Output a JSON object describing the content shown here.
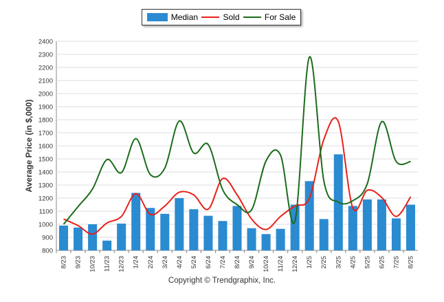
{
  "legend": {
    "median": "Median",
    "sold": "Sold",
    "for_sale": "For Sale"
  },
  "copyright": "Copyright © Trendgraphix, Inc.",
  "chart_data": {
    "type": "bar",
    "title": "",
    "xlabel": "",
    "ylabel": "Average Price (in $,000)",
    "ylim": [
      800,
      2400
    ],
    "yticks": [
      800,
      900,
      1000,
      1100,
      1200,
      1300,
      1400,
      1500,
      1600,
      1700,
      1800,
      1900,
      2000,
      2100,
      2200,
      2300,
      2400
    ],
    "grid": true,
    "legend_position": "top-center",
    "categories": [
      "8/23",
      "9/23",
      "10/23",
      "11/23",
      "12/23",
      "1/24",
      "2/24",
      "3/24",
      "4/24",
      "5/24",
      "6/24",
      "7/24",
      "8/24",
      "9/24",
      "10/24",
      "11/24",
      "12/24",
      "1/25",
      "2/25",
      "3/25",
      "4/25",
      "5/25",
      "6/25",
      "7/25",
      "8/25"
    ],
    "series": [
      {
        "name": "Median",
        "type": "bar",
        "color": "#2b8bd1",
        "values": [
          990,
          975,
          1000,
          875,
          1005,
          1240,
          1125,
          1080,
          1200,
          1115,
          1065,
          1025,
          1140,
          970,
          925,
          965,
          1150,
          1330,
          1040,
          1535,
          1140,
          1190,
          1190,
          1045,
          1150
        ]
      },
      {
        "name": "Sold",
        "type": "line",
        "color": "#e8201a",
        "values": [
          1040,
          990,
          925,
          1010,
          1060,
          1235,
          1075,
          1140,
          1245,
          1225,
          1115,
          1350,
          1225,
          1040,
          960,
          1060,
          1140,
          1200,
          1650,
          1785,
          1125,
          1260,
          1205,
          1060,
          1210
        ]
      },
      {
        "name": "For Sale",
        "type": "line",
        "color": "#1a6b1a",
        "values": [
          1000,
          1135,
          1270,
          1495,
          1395,
          1655,
          1380,
          1430,
          1790,
          1545,
          1610,
          1265,
          1150,
          1110,
          1485,
          1530,
          1025,
          2280,
          1330,
          1170,
          1180,
          1310,
          1785,
          1480,
          1480
        ]
      }
    ]
  }
}
